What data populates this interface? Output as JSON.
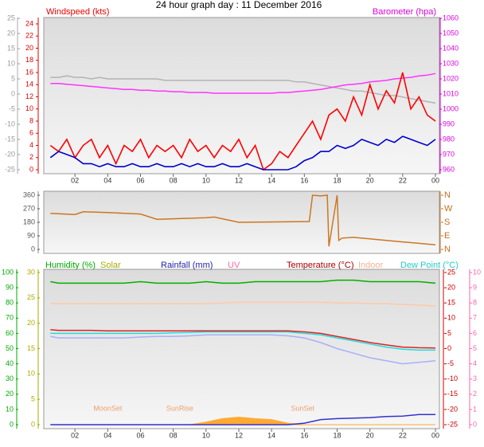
{
  "chart_data": [
    {
      "type": "line",
      "title": "24 hour graph day : 11 December 2016",
      "ylabel": "Windspeed (kts)",
      "y3label": "Barometer (hpa)",
      "x": [
        0.5,
        1,
        1.5,
        2,
        2.5,
        3,
        3.5,
        4,
        4.5,
        5,
        5.5,
        6,
        6.5,
        7,
        7.5,
        8,
        8.5,
        9,
        9.5,
        10,
        10.5,
        11,
        11.5,
        12,
        12.5,
        13,
        13.5,
        14,
        14.5,
        15,
        15.5,
        16,
        16.5,
        17,
        17.5,
        18,
        18.5,
        19,
        19.5,
        20,
        20.5,
        21,
        21.5,
        22,
        22.5,
        23,
        23.5,
        24
      ],
      "xlim": [
        0,
        24
      ],
      "xticks": [
        {
          "value": 2,
          "label": "02"
        },
        {
          "value": 4,
          "label": "04"
        },
        {
          "value": 6,
          "label": "06"
        },
        {
          "value": 8,
          "label": "08"
        },
        10,
        12,
        14,
        16,
        18,
        20,
        22,
        {
          "value": 24,
          "label": "00"
        }
      ],
      "ylim": [
        0,
        24
      ],
      "yticks": [
        0,
        2,
        4,
        6,
        8,
        10,
        12,
        14,
        16,
        18,
        20,
        22,
        24
      ],
      "y2lim": [
        -25,
        25
      ],
      "y2ticks": [
        -25,
        -20,
        -15,
        -10,
        -5,
        0,
        5,
        10,
        15,
        20,
        25
      ],
      "y3lim": [
        960,
        1060
      ],
      "y3ticks": [
        960,
        970,
        980,
        990,
        1000,
        1010,
        1020,
        1030,
        1040,
        1050,
        1060
      ],
      "series": [
        {
          "color": "#b4b4b4",
          "axis": "y2",
          "values": [
            5.5,
            5.5,
            6,
            5.5,
            5.5,
            5,
            5.5,
            5,
            5,
            5,
            5,
            5,
            5,
            5,
            4.5,
            4.5,
            4.5,
            4.5,
            4.5,
            4.5,
            4.5,
            4.5,
            4.5,
            4.5,
            4.5,
            4.5,
            4.5,
            4.5,
            4.5,
            4.5,
            4,
            4,
            3.5,
            3,
            2.5,
            2,
            1.5,
            1,
            1,
            0.5,
            0,
            -0.5,
            -0.5,
            -1,
            -1.5,
            -2,
            -2.5,
            -3
          ]
        },
        {
          "color": "#ff33ff",
          "axis": "y3",
          "values": [
            1017,
            1017,
            1016.5,
            1016,
            1015.5,
            1015,
            1014.5,
            1014,
            1013.5,
            1013,
            1013,
            1012.5,
            1012.5,
            1012,
            1012,
            1011.5,
            1011.5,
            1011,
            1011,
            1011,
            1010.5,
            1010.5,
            1010.5,
            1010.5,
            1010.5,
            1010.5,
            1010.5,
            1010.5,
            1011,
            1011,
            1011.5,
            1012,
            1012.5,
            1013,
            1014,
            1015,
            1016,
            1016.5,
            1017,
            1018,
            1018.5,
            1019,
            1020,
            1020.5,
            1021,
            1022,
            1022.5,
            1023.5
          ]
        },
        {
          "color": "#ff0000",
          "axis": "y",
          "values": [
            4,
            3,
            5,
            2,
            4,
            5,
            2,
            4,
            1,
            4,
            3,
            5,
            2,
            4,
            3,
            4,
            2,
            5,
            3,
            4,
            2,
            4,
            3,
            5,
            2,
            4,
            0,
            1,
            3,
            2,
            4,
            6,
            8,
            5,
            9,
            10,
            8,
            12,
            9,
            14,
            10,
            13,
            11,
            16,
            10,
            12,
            9,
            8
          ]
        },
        {
          "color": "#0000cc",
          "axis": "y",
          "values": [
            2,
            3,
            2.5,
            2,
            1,
            1,
            0.5,
            1,
            0.5,
            0.5,
            1,
            0.5,
            0.5,
            1,
            0.5,
            0.5,
            1,
            0.5,
            1,
            0.5,
            0.5,
            1,
            0.5,
            0.5,
            1,
            0.5,
            0,
            0,
            0,
            0,
            0.5,
            1.5,
            2,
            3,
            3,
            4,
            3.5,
            4,
            5,
            4.5,
            4,
            5,
            4.5,
            5.5,
            5,
            4.5,
            4,
            5
          ]
        }
      ]
    },
    {
      "type": "line",
      "x": [
        0.5,
        2,
        2.5,
        4,
        6,
        7,
        10,
        10.5,
        12,
        16.3,
        16.5,
        17,
        17.4,
        17.5,
        18,
        18.1,
        18.3,
        19,
        20,
        21,
        22,
        23,
        24
      ],
      "xlim": [
        0,
        24
      ],
      "ylim": [
        0,
        360
      ],
      "yticks": [
        0,
        90,
        180,
        270,
        360
      ],
      "y2lim": [
        0,
        360
      ],
      "y2ticks": [
        {
          "value": 0,
          "label": "N"
        },
        {
          "value": 90,
          "label": "E"
        },
        {
          "value": 180,
          "label": "S"
        },
        {
          "value": 270,
          "label": "W"
        },
        {
          "value": 360,
          "label": "N"
        }
      ],
      "series": [
        {
          "color": "#cc7722",
          "axis": "y",
          "values": [
            240,
            232,
            250,
            245,
            235,
            200,
            210,
            215,
            180,
            185,
            360,
            355,
            360,
            20,
            360,
            60,
            75,
            80,
            70,
            60,
            50,
            40,
            30
          ]
        }
      ]
    },
    {
      "type": "line",
      "y4label": "UV",
      "x": [
        0.5,
        1,
        2,
        3,
        4,
        5,
        6,
        7,
        8,
        9,
        10,
        11,
        12,
        13,
        14,
        15,
        16,
        17,
        18,
        19,
        20,
        21,
        22,
        23,
        24
      ],
      "xlim": [
        0,
        24
      ],
      "xticks": [
        {
          "value": 2,
          "label": "02"
        },
        {
          "value": 4,
          "label": "04"
        },
        {
          "value": 6,
          "label": "06"
        },
        {
          "value": 8,
          "label": "08"
        },
        10,
        12,
        14,
        16,
        18,
        20,
        22,
        {
          "value": 24,
          "label": "00"
        }
      ],
      "ylim": [
        0,
        100
      ],
      "yticks": [
        0,
        10,
        20,
        30,
        40,
        50,
        60,
        70,
        80,
        90,
        100
      ],
      "y2lim": [
        0,
        30
      ],
      "y2ticks": [
        0,
        5,
        10,
        15,
        20,
        25,
        30
      ],
      "y3lim": [
        -25,
        25
      ],
      "y3ticks": [
        -25,
        -20,
        -15,
        -10,
        -5,
        0,
        5,
        10,
        15,
        20,
        25
      ],
      "y4lim": [
        0,
        10
      ],
      "y4ticks": [
        0,
        1,
        2,
        3,
        4,
        5,
        6,
        7,
        8,
        9,
        10
      ],
      "events": [
        {
          "label": "MoonSet",
          "x": 4
        },
        {
          "label": "SunRise",
          "x": 8.4
        },
        {
          "label": "SunSet",
          "x": 15.9
        }
      ],
      "series": [
        {
          "name": "Humidity (%)",
          "color": "#00b000",
          "axis": "y",
          "values": [
            94,
            93,
            93,
            93,
            93,
            93,
            94,
            93,
            93,
            93,
            94,
            93,
            93,
            94,
            94,
            94,
            94,
            94,
            95,
            95,
            94,
            94,
            94,
            94,
            93
          ]
        },
        {
          "name": "Solar",
          "color": "#ffaa33",
          "axis": "y2",
          "area": true,
          "values": [
            0,
            0,
            0,
            0,
            0,
            0,
            0,
            0,
            0,
            0,
            0.5,
            1.2,
            1.5,
            1.2,
            1,
            0.3,
            0,
            0,
            0,
            0,
            0,
            0,
            0,
            0,
            0
          ]
        },
        {
          "name": "Rainfall (mm)",
          "color": "#3333cc",
          "axis": "y2",
          "values": [
            0,
            0,
            0,
            0,
            0,
            0,
            0,
            0,
            0,
            0,
            0,
            0,
            0,
            0,
            0,
            0,
            0.3,
            1,
            1.2,
            1.3,
            1.4,
            1.6,
            1.7,
            2,
            2
          ]
        },
        {
          "name": "Indoor",
          "color": "#ffc8a8",
          "axis": "y3",
          "values": [
            14.8,
            14.8,
            14.7,
            14.8,
            14.8,
            14.8,
            14.8,
            14.8,
            14.8,
            14.8,
            14.8,
            15,
            15.2,
            15.2,
            15.2,
            15.2,
            15.2,
            15.2,
            15,
            15,
            14.8,
            14.8,
            14.5,
            14.3,
            14
          ]
        },
        {
          "color": "#a8b0f8",
          "axis": "y3",
          "values": [
            4,
            3.5,
            3.5,
            3.5,
            3.5,
            3.5,
            3.8,
            4,
            4,
            4.2,
            4.5,
            4.5,
            4.5,
            4.5,
            4.5,
            4.2,
            3.5,
            2,
            0,
            -1.5,
            -3,
            -4,
            -5,
            -4.5,
            -4
          ]
        },
        {
          "name": "Dew Point (°C)",
          "color": "#22dddd",
          "axis": "y3",
          "values": [
            5,
            5,
            5,
            5,
            5,
            5,
            5,
            5,
            5.2,
            5.3,
            5.5,
            5.5,
            5.5,
            5.5,
            5.5,
            5.5,
            5,
            4.5,
            3.5,
            2.5,
            1.5,
            0.5,
            -0.2,
            -0.5,
            -0.5
          ]
        },
        {
          "name": "Temperature (°C)",
          "color": "#dd2222",
          "axis": "y3",
          "values": [
            6.2,
            6,
            6,
            6,
            5.8,
            5.8,
            5.8,
            5.8,
            5.8,
            5.8,
            5.8,
            5.8,
            5.8,
            5.8,
            5.8,
            5.8,
            5.5,
            5,
            4,
            3,
            2,
            1.2,
            0.5,
            0.3,
            0.2
          ]
        }
      ]
    }
  ]
}
